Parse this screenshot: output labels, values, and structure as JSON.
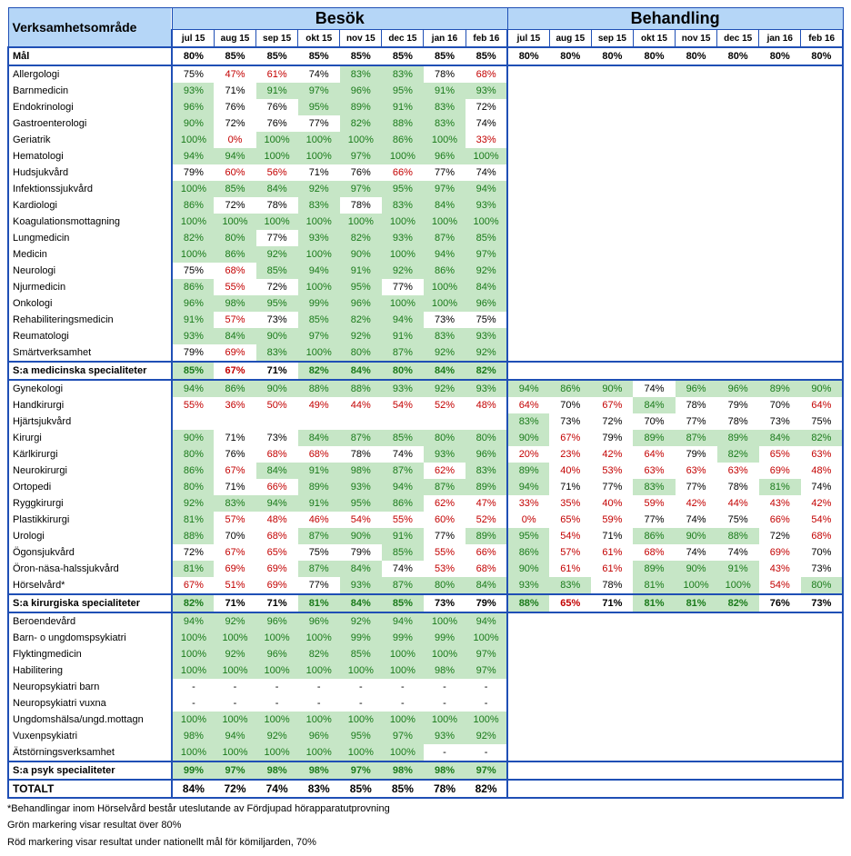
{
  "header": {
    "area_label": "Verksamhetsområde",
    "group1": "Besök",
    "group2": "Behandling",
    "months": [
      "jul 15",
      "aug 15",
      "sep 15",
      "okt 15",
      "nov 15",
      "dec 15",
      "jan 16",
      "feb 16"
    ]
  },
  "thresholds": {
    "green_at_or_above": 80,
    "red_below": 70
  },
  "colors": {
    "header_bg": "#b5d6f7",
    "border": "#1f4fb5",
    "green_bg": "#c6e6c6",
    "green_text": "#1a7a1a",
    "red_text": "#c30000"
  },
  "target_row": {
    "label": "Mål",
    "besok": [
      "80%",
      "85%",
      "85%",
      "85%",
      "85%",
      "85%",
      "85%",
      "85%"
    ],
    "behandling": [
      "80%",
      "80%",
      "80%",
      "80%",
      "80%",
      "80%",
      "80%",
      "80%"
    ]
  },
  "sections": [
    {
      "rows": [
        {
          "label": "Allergologi",
          "besok": [
            75,
            47,
            61,
            74,
            83,
            83,
            78,
            68
          ],
          "behandling": []
        },
        {
          "label": "Barnmedicin",
          "besok": [
            93,
            71,
            91,
            97,
            96,
            95,
            91,
            93
          ],
          "behandling": []
        },
        {
          "label": "Endokrinologi",
          "besok": [
            96,
            76,
            76,
            95,
            89,
            91,
            83,
            72
          ],
          "behandling": []
        },
        {
          "label": "Gastroenterologi",
          "besok": [
            90,
            72,
            76,
            77,
            82,
            88,
            83,
            74
          ],
          "behandling": []
        },
        {
          "label": "Geriatrik",
          "besok": [
            100,
            0,
            100,
            100,
            100,
            86,
            100,
            33
          ],
          "behandling": []
        },
        {
          "label": "Hematologi",
          "besok": [
            94,
            94,
            100,
            100,
            97,
            100,
            96,
            100
          ],
          "behandling": []
        },
        {
          "label": "Hudsjukvård",
          "besok": [
            79,
            60,
            56,
            71,
            76,
            66,
            77,
            74
          ],
          "behandling": []
        },
        {
          "label": "Infektionssjukvård",
          "besok": [
            100,
            85,
            84,
            92,
            97,
            95,
            97,
            94
          ],
          "behandling": []
        },
        {
          "label": "Kardiologi",
          "besok": [
            86,
            72,
            78,
            83,
            78,
            83,
            84,
            93
          ],
          "behandling": []
        },
        {
          "label": "Koagulationsmottagning",
          "besok": [
            100,
            100,
            100,
            100,
            100,
            100,
            100,
            100
          ],
          "behandling": []
        },
        {
          "label": "Lungmedicin",
          "besok": [
            82,
            80,
            77,
            93,
            82,
            93,
            87,
            85
          ],
          "behandling": []
        },
        {
          "label": "Medicin",
          "besok": [
            100,
            86,
            92,
            100,
            90,
            100,
            94,
            97
          ],
          "behandling": []
        },
        {
          "label": "Neurologi",
          "besok": [
            75,
            68,
            85,
            94,
            91,
            92,
            86,
            92
          ],
          "behandling": []
        },
        {
          "label": "Njurmedicin",
          "besok": [
            86,
            55,
            72,
            100,
            95,
            77,
            100,
            84
          ],
          "behandling": []
        },
        {
          "label": "Onkologi",
          "besok": [
            96,
            98,
            95,
            99,
            96,
            100,
            100,
            96
          ],
          "behandling": []
        },
        {
          "label": "Rehabiliteringsmedicin",
          "besok": [
            91,
            57,
            73,
            85,
            82,
            94,
            73,
            75
          ],
          "behandling": []
        },
        {
          "label": "Reumatologi",
          "besok": [
            93,
            84,
            90,
            97,
            92,
            91,
            83,
            93
          ],
          "behandling": []
        },
        {
          "label": "Smärtverksamhet",
          "besok": [
            79,
            69,
            83,
            100,
            80,
            87,
            92,
            92
          ],
          "behandling": []
        }
      ],
      "subtotal": {
        "label": "S:a medicinska specialiteter",
        "besok": [
          85,
          67,
          71,
          82,
          84,
          80,
          84,
          82
        ],
        "behandling": []
      }
    },
    {
      "rows": [
        {
          "label": "Gynekologi",
          "besok": [
            94,
            86,
            90,
            88,
            88,
            93,
            92,
            93
          ],
          "behandling": [
            94,
            86,
            90,
            74,
            96,
            96,
            89,
            90
          ]
        },
        {
          "label": "Handkirurgi",
          "besok": [
            55,
            36,
            50,
            49,
            44,
            54,
            52,
            48
          ],
          "behandling": [
            64,
            70,
            67,
            84,
            78,
            79,
            70,
            64
          ]
        },
        {
          "label": "Hjärtsjukvård",
          "besok": [
            null,
            null,
            null,
            null,
            null,
            null,
            null,
            null
          ],
          "behandling": [
            83,
            73,
            72,
            70,
            77,
            78,
            73,
            75
          ]
        },
        {
          "label": "Kirurgi",
          "besok": [
            90,
            71,
            73,
            84,
            87,
            85,
            80,
            80
          ],
          "behandling": [
            90,
            67,
            79,
            89,
            87,
            89,
            84,
            82
          ]
        },
        {
          "label": "Kärlkirurgi",
          "besok": [
            80,
            76,
            68,
            68,
            78,
            74,
            93,
            96
          ],
          "behandling": [
            20,
            23,
            42,
            64,
            79,
            82,
            65,
            63
          ]
        },
        {
          "label": "Neurokirurgi",
          "besok": [
            86,
            67,
            84,
            91,
            98,
            87,
            62,
            83
          ],
          "behandling": [
            89,
            40,
            53,
            63,
            63,
            63,
            69,
            48
          ]
        },
        {
          "label": "Ortopedi",
          "besok": [
            80,
            71,
            66,
            89,
            93,
            94,
            87,
            89
          ],
          "behandling": [
            94,
            71,
            77,
            83,
            77,
            78,
            81,
            74
          ]
        },
        {
          "label": "Ryggkirurgi",
          "besok": [
            92,
            83,
            94,
            91,
            95,
            86,
            62,
            47
          ],
          "behandling": [
            33,
            35,
            40,
            59,
            42,
            44,
            43,
            42
          ]
        },
        {
          "label": "Plastikkirurgi",
          "besok": [
            81,
            57,
            48,
            46,
            54,
            55,
            60,
            52
          ],
          "behandling": [
            0,
            65,
            59,
            77,
            74,
            75,
            66,
            54
          ]
        },
        {
          "label": "Urologi",
          "besok": [
            88,
            70,
            68,
            87,
            90,
            91,
            77,
            89
          ],
          "behandling": [
            95,
            54,
            71,
            86,
            90,
            88,
            72,
            68
          ]
        },
        {
          "label": "Ögonsjukvård",
          "besok": [
            72,
            67,
            65,
            75,
            79,
            85,
            55,
            66
          ],
          "behandling": [
            86,
            57,
            61,
            68,
            74,
            74,
            69,
            70
          ]
        },
        {
          "label": "Öron-näsa-halssjukvård",
          "besok": [
            81,
            69,
            69,
            87,
            84,
            74,
            53,
            68
          ],
          "behandling": [
            90,
            61,
            61,
            89,
            90,
            91,
            43,
            73
          ]
        },
        {
          "label": "Hörselvård*",
          "besok": [
            67,
            51,
            69,
            77,
            93,
            87,
            80,
            84
          ],
          "behandling": [
            93,
            83,
            78,
            81,
            100,
            100,
            54,
            80
          ]
        }
      ],
      "subtotal": {
        "label": "S:a kirurgiska specialiteter",
        "besok": [
          82,
          71,
          71,
          81,
          84,
          85,
          73,
          79
        ],
        "behandling": [
          88,
          65,
          71,
          81,
          81,
          82,
          76,
          73
        ]
      }
    },
    {
      "rows": [
        {
          "label": "Beroendevård",
          "besok": [
            94,
            92,
            96,
            96,
            92,
            94,
            100,
            94
          ],
          "behandling": []
        },
        {
          "label": "Barn- o ungdomspsykiatri",
          "besok": [
            100,
            100,
            100,
            100,
            99,
            99,
            99,
            100
          ],
          "behandling": []
        },
        {
          "label": "Flyktingmedicin",
          "besok": [
            100,
            92,
            96,
            82,
            85,
            100,
            100,
            97
          ],
          "behandling": []
        },
        {
          "label": "Habilitering",
          "besok": [
            100,
            100,
            100,
            100,
            100,
            100,
            98,
            97
          ],
          "behandling": []
        },
        {
          "label": "Neuropsykiatri barn",
          "besok": [
            "-",
            "-",
            "-",
            "-",
            "-",
            "-",
            "-",
            "-"
          ],
          "behandling": []
        },
        {
          "label": "Neuropsykiatri vuxna",
          "besok": [
            "-",
            "-",
            "-",
            "-",
            "-",
            "-",
            "-",
            "-"
          ],
          "behandling": []
        },
        {
          "label": "Ungdomshälsa/ungd.mottagn",
          "besok": [
            100,
            100,
            100,
            100,
            100,
            100,
            100,
            100
          ],
          "behandling": []
        },
        {
          "label": "Vuxenpsykiatri",
          "besok": [
            98,
            94,
            92,
            96,
            95,
            97,
            93,
            92
          ],
          "behandling": []
        },
        {
          "label": "Ätstörningsverksamhet",
          "besok": [
            100,
            100,
            100,
            100,
            100,
            100,
            "-",
            "-"
          ],
          "behandling": []
        }
      ],
      "subtotal": {
        "label": "S:a psyk specialiteter",
        "besok": [
          99,
          97,
          98,
          98,
          97,
          98,
          98,
          97
        ],
        "behandling": []
      }
    }
  ],
  "grand_total": {
    "label": "TOTALT",
    "besok": [
      84,
      72,
      74,
      83,
      85,
      85,
      78,
      82
    ],
    "behandling": []
  },
  "footnotes": [
    "*Behandlingar inom Hörselvård består uteslutande av Fördjupad hörapparatutprovning",
    "Grön markering visar resultat över  80%",
    "Röd markering visar resultat under nationellt mål för kömiljarden, 70%"
  ]
}
